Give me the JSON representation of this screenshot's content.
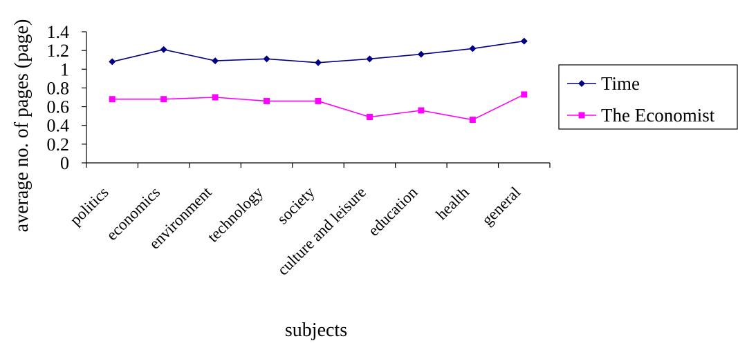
{
  "chart_data": {
    "type": "line",
    "title": "",
    "xlabel": "subjects",
    "ylabel": "average no. of pages (page)",
    "ylim": [
      0,
      1.4
    ],
    "yticks": [
      "0",
      "0.2",
      "0.4",
      "0.6",
      "0.8",
      "1",
      "1.2",
      "1.4"
    ],
    "grid": false,
    "legend_position": "right",
    "categories": [
      "politics",
      "economics",
      "environment",
      "technology",
      "society",
      "culture and leisure",
      "education",
      "health",
      "general"
    ],
    "series": [
      {
        "name": "Time",
        "color": "#000080",
        "marker": "diamond",
        "values": [
          1.08,
          1.21,
          1.09,
          1.11,
          1.07,
          1.11,
          1.16,
          1.22,
          1.3
        ]
      },
      {
        "name": "The Economist",
        "color": "#FF00FF",
        "marker": "square",
        "values": [
          0.68,
          0.68,
          0.7,
          0.66,
          0.66,
          0.49,
          0.56,
          0.46,
          0.73
        ]
      }
    ]
  }
}
